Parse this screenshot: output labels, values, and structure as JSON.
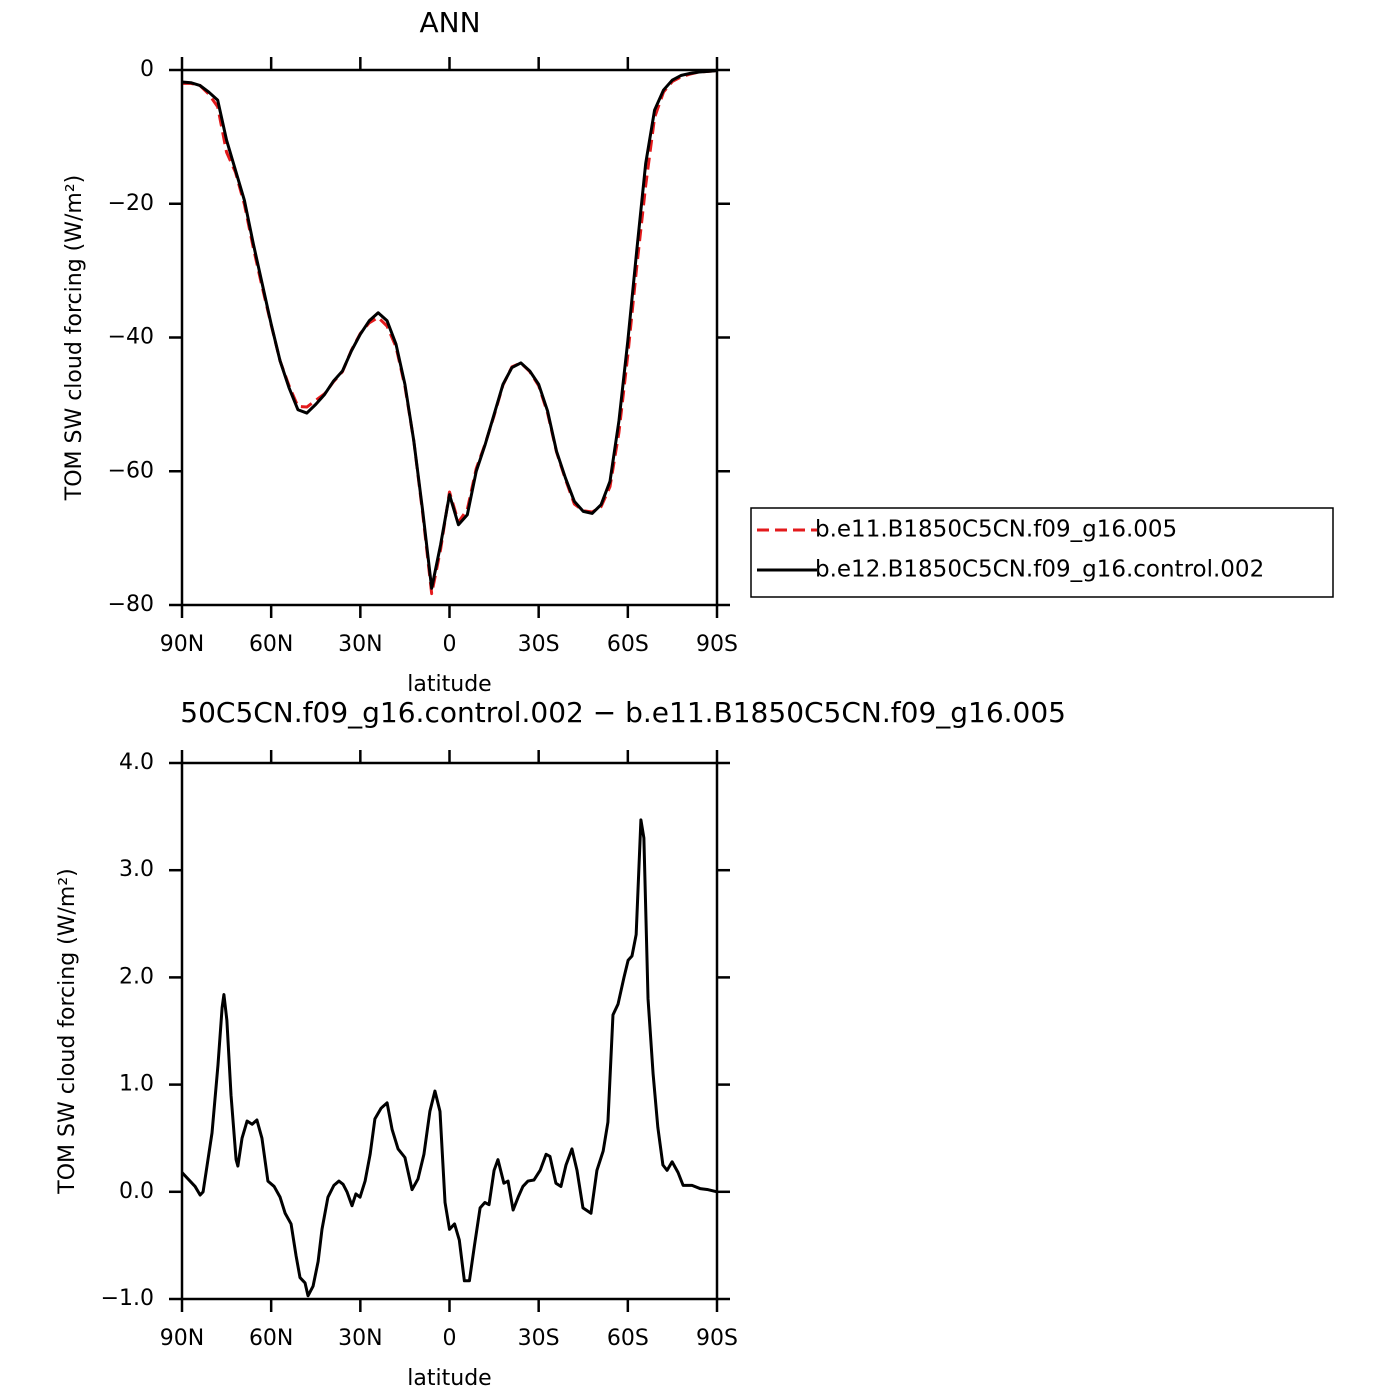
{
  "chart_data": [
    {
      "type": "line",
      "title": "ANN",
      "x_label": "latitude",
      "y_label": "TOM SW cloud forcing (W/m²)",
      "x": [
        90,
        87,
        84,
        81,
        78,
        75,
        72,
        69,
        66,
        63,
        60,
        57,
        54,
        51,
        48,
        45,
        42,
        39,
        36,
        33,
        30,
        27,
        24,
        21,
        18,
        15,
        12,
        9,
        6,
        3,
        0,
        -3,
        -6,
        -9,
        -12,
        -15,
        -18,
        -21,
        -24,
        -27,
        -30,
        -33,
        -36,
        -39,
        -42,
        -45,
        -48,
        -51,
        -54,
        -57,
        -60,
        -63,
        -66,
        -69,
        -72,
        -75,
        -78,
        -81,
        -84,
        -87,
        -90
      ],
      "series": [
        {
          "name": "b.e11.B1850C5CN.f09_g16.005",
          "color": "#e31a1c",
          "linestyle": "dashed",
          "values": [
            -2.0,
            -2.0,
            -2.3,
            -3.6,
            -5.5,
            -12.3,
            -15.3,
            -20.1,
            -26.6,
            -32.5,
            -38.1,
            -43.5,
            -47.2,
            -50.3,
            -50.4,
            -49.4,
            -48.4,
            -46.6,
            -45.1,
            -41.9,
            -39.4,
            -37.8,
            -37.0,
            -38.3,
            -41.4,
            -47.3,
            -55.5,
            -66.4,
            -78.3,
            -71.7,
            -63.1,
            -67.6,
            -65.7,
            -59.6,
            -55.9,
            -51.7,
            -47.1,
            -44.4,
            -43.8,
            -45.1,
            -47.2,
            -51.3,
            -57.1,
            -61.2,
            -64.9,
            -65.9,
            -66.1,
            -65.3,
            -62.3,
            -54.2,
            -42.6,
            -29.4,
            -17.3,
            -7.1,
            -3.3,
            -1.7,
            -1.0,
            -0.6,
            -0.3,
            -0.2,
            -0.1
          ]
        },
        {
          "name": "b.e12.B1850C5CN.f09_g16.control.002",
          "color": "#000000",
          "linestyle": "solid",
          "values": [
            -1.8,
            -1.9,
            -2.3,
            -3.3,
            -4.5,
            -10.5,
            -15,
            -19.5,
            -26,
            -32,
            -38,
            -43.5,
            -47.5,
            -50.8,
            -51.3,
            -50,
            -48.5,
            -46.5,
            -45,
            -42,
            -39.5,
            -37.5,
            -36.3,
            -37.5,
            -41,
            -47,
            -55.5,
            -66,
            -77.5,
            -71,
            -63.5,
            -68,
            -66.5,
            -60,
            -56,
            -51.5,
            -47,
            -44.5,
            -43.8,
            -45,
            -47,
            -51,
            -57,
            -61,
            -64.5,
            -66,
            -66.3,
            -65,
            -61.5,
            -52.5,
            -40.5,
            -27,
            -14,
            -6,
            -3,
            -1.5,
            -0.8,
            -0.5,
            -0.3,
            -0.2,
            -0.1
          ]
        }
      ],
      "xlim": [
        90,
        -90
      ],
      "xticks": [
        {
          "value": 90,
          "label": "90N"
        },
        {
          "value": 60,
          "label": "60N"
        },
        {
          "value": 30,
          "label": "30N"
        },
        0,
        {
          "value": -30,
          "label": "30S"
        },
        {
          "value": -60,
          "label": "60S"
        },
        {
          "value": -90,
          "label": "90S"
        }
      ],
      "ylim": [
        -80,
        0
      ],
      "yticks": [
        {
          "value": 0,
          "label": "0"
        },
        {
          "value": -20,
          "label": "−20"
        },
        {
          "value": -40,
          "label": "−40"
        },
        {
          "value": -60,
          "label": "−60"
        },
        {
          "value": -80,
          "label": "−80"
        }
      ],
      "legend": "right"
    },
    {
      "type": "line",
      "title": "50C5CN.f09_g16.control.002 − b.e11.B1850C5CN.f09_g16.005",
      "x_label": "latitude",
      "y_label": "TOM SW cloud forcing (W/m²)",
      "x": [
        90,
        85.6,
        83.9,
        82.9,
        79.9,
        77.9,
        76.5,
        75.9,
        74.9,
        73.5,
        71.8,
        71.2,
        69.8,
        68.1,
        66.4,
        64.8,
        63.1,
        61.1,
        59,
        57,
        55.3,
        53.3,
        51.6,
        50.3,
        48.6,
        47.6,
        45.9,
        44.2,
        42.9,
        40.9,
        38.9,
        37.2,
        35.8,
        34.5,
        32.8,
        31.5,
        30.1,
        28.4,
        26.7,
        25.1,
        23,
        21,
        19.3,
        17.3,
        15,
        12.6,
        10.6,
        8.6,
        6.6,
        4.9,
        3.2,
        1.5,
        0,
        -1.7,
        -3.3,
        -5,
        -6.7,
        -8.4,
        -10.3,
        -11.9,
        -13.3,
        -15,
        -16.3,
        -18.3,
        -19.7,
        -21.4,
        -23.1,
        -24.7,
        -26.4,
        -28.4,
        -30.5,
        -32.5,
        -33.8,
        -35.8,
        -37.5,
        -39.2,
        -41.2,
        -42.9,
        -44.9,
        -47.6,
        -49.6,
        -51.7,
        -53.3,
        -55,
        -56.7,
        -58.7,
        -60.1,
        -61.4,
        -62.8,
        -64.4,
        -65.4,
        -66.8,
        -68.5,
        -70.1,
        -71.8,
        -73.2,
        -74.9,
        -76.9,
        -78.6,
        -81.6,
        -84.3,
        -87,
        -90
      ],
      "series": [
        {
          "color": "#000000",
          "linestyle": "solid",
          "values": [
            0.18,
            0.05,
            -0.03,
            0,
            0.55,
            1.18,
            1.72,
            1.84,
            1.6,
            0.9,
            0.3,
            0.24,
            0.5,
            0.66,
            0.63,
            0.67,
            0.5,
            0.1,
            0.05,
            -0.05,
            -0.2,
            -0.3,
            -0.6,
            -0.8,
            -0.85,
            -0.97,
            -0.88,
            -0.65,
            -0.35,
            -0.05,
            0.06,
            0.1,
            0.07,
            0,
            -0.13,
            -0.02,
            -0.05,
            0.1,
            0.35,
            0.68,
            0.78,
            0.83,
            0.58,
            0.4,
            0.32,
            0.02,
            0.12,
            0.35,
            0.75,
            0.94,
            0.75,
            -0.1,
            -0.35,
            -0.3,
            -0.45,
            -0.83,
            -0.83,
            -0.5,
            -0.15,
            -0.1,
            -0.12,
            0.2,
            0.3,
            0.08,
            0.1,
            -0.17,
            -0.05,
            0.05,
            0.1,
            0.11,
            0.2,
            0.35,
            0.33,
            0.08,
            0.05,
            0.25,
            0.4,
            0.2,
            -0.15,
            -0.2,
            0.2,
            0.38,
            0.65,
            1.65,
            1.75,
            2,
            2.16,
            2.2,
            2.4,
            3.47,
            3.3,
            1.8,
            1.1,
            0.6,
            0.25,
            0.2,
            0.28,
            0.18,
            0.06,
            0.06,
            0.03,
            0.02,
            0
          ]
        }
      ],
      "xlim": [
        90,
        -90
      ],
      "xticks": [
        {
          "value": 90,
          "label": "90N"
        },
        {
          "value": 60,
          "label": "60N"
        },
        {
          "value": 30,
          "label": "30N"
        },
        0,
        {
          "value": -30,
          "label": "30S"
        },
        {
          "value": -60,
          "label": "60S"
        },
        {
          "value": -90,
          "label": "90S"
        }
      ],
      "ylim": [
        -1,
        4
      ],
      "yticks": [
        {
          "value": 4,
          "label": "4.0"
        },
        {
          "value": 3,
          "label": "3.0"
        },
        {
          "value": 2,
          "label": "2.0"
        },
        {
          "value": 1,
          "label": "1.0"
        },
        {
          "value": 0,
          "label": "0.0"
        },
        {
          "value": -1,
          "label": "−1.0"
        }
      ]
    }
  ]
}
